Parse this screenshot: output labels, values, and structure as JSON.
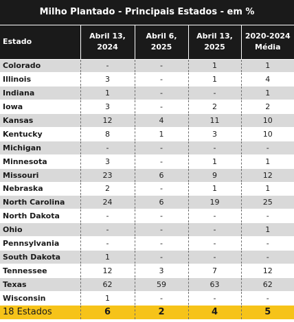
{
  "title": "Milho Plantado - Principais Estados - em %",
  "headers": {
    "state": "Estado",
    "col1": [
      "Abril 13,",
      "2024"
    ],
    "col2": [
      "Abril 6,",
      "2025"
    ],
    "col3": [
      "Abril 13,",
      "2025"
    ],
    "col4": [
      "2020-2024",
      "Média"
    ]
  },
  "rows": [
    {
      "state": "Colorado",
      "values": [
        "-",
        "-",
        "1",
        "1"
      ]
    },
    {
      "state": "Illinois",
      "values": [
        "3",
        "-",
        "1",
        "4"
      ]
    },
    {
      "state": "Indiana",
      "values": [
        "1",
        "-",
        "-",
        "1"
      ]
    },
    {
      "state": "Iowa",
      "values": [
        "3",
        "-",
        "2",
        "2"
      ]
    },
    {
      "state": "Kansas",
      "values": [
        "12",
        "4",
        "11",
        "10"
      ]
    },
    {
      "state": "Kentucky",
      "values": [
        "8",
        "1",
        "3",
        "10"
      ]
    },
    {
      "state": "Michigan",
      "values": [
        "-",
        "-",
        "-",
        "-"
      ]
    },
    {
      "state": "Minnesota",
      "values": [
        "3",
        "-",
        "1",
        "1"
      ]
    },
    {
      "state": "Missouri",
      "values": [
        "23",
        "6",
        "9",
        "12"
      ]
    },
    {
      "state": "Nebraska",
      "values": [
        "2",
        "-",
        "1",
        "1"
      ]
    },
    {
      "state": "North Carolina",
      "values": [
        "24",
        "6",
        "19",
        "25"
      ]
    },
    {
      "state": "North Dakota",
      "values": [
        "-",
        "-",
        "-",
        "-"
      ]
    },
    {
      "state": "Ohio",
      "values": [
        "-",
        "-",
        "-",
        "1"
      ]
    },
    {
      "state": "Pennsylvania",
      "values": [
        "-",
        "-",
        "-",
        "-"
      ]
    },
    {
      "state": "South Dakota",
      "values": [
        "1",
        "-",
        "-",
        "-"
      ]
    },
    {
      "state": "Tennessee",
      "values": [
        "12",
        "3",
        "7",
        "12"
      ]
    },
    {
      "state": "Texas",
      "values": [
        "62",
        "59",
        "63",
        "62"
      ]
    },
    {
      "state": "Wisconsin",
      "values": [
        "1",
        "-",
        "-",
        "-"
      ]
    }
  ],
  "total": {
    "state": "18 Estados",
    "values": [
      "6",
      "2",
      "4",
      "5"
    ]
  }
}
